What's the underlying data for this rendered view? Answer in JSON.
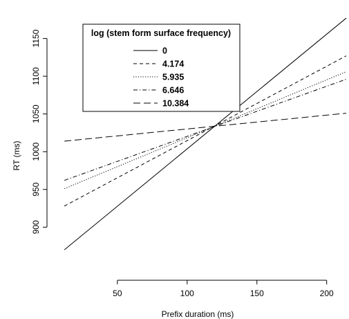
{
  "chart_data": {
    "type": "line",
    "title": "",
    "xlabel": "Prefix duration (ms)",
    "ylabel": "RT (ms)",
    "xlim": [
      4,
      216
    ],
    "ylim": [
      837,
      1190
    ],
    "x_ticks": [
      50,
      100,
      150,
      200
    ],
    "y_ticks": [
      900,
      950,
      1000,
      1050,
      1100,
      1150
    ],
    "grid": false,
    "legend_title": "log (stem form surface frequency)",
    "legend_position": "top-left",
    "series": [
      {
        "name": "0",
        "linestyle": "solid",
        "x": [
          12,
          214
        ],
        "y": [
          870,
          1177
        ]
      },
      {
        "name": "4.174",
        "linestyle": "dashed",
        "x": [
          12,
          214
        ],
        "y": [
          928,
          1127
        ]
      },
      {
        "name": "5.935",
        "linestyle": "dotted",
        "x": [
          12,
          214
        ],
        "y": [
          951,
          1106
        ]
      },
      {
        "name": "6.646",
        "linestyle": "dashdot",
        "x": [
          12,
          214
        ],
        "y": [
          962,
          1096
        ]
      },
      {
        "name": "10.384",
        "linestyle": "longdash",
        "x": [
          12,
          214
        ],
        "y": [
          1014,
          1051
        ]
      }
    ]
  }
}
